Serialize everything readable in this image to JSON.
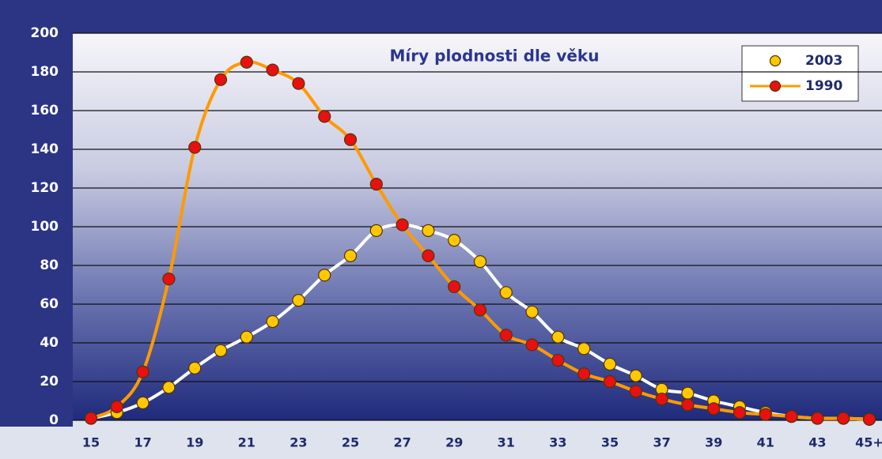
{
  "chart_data": {
    "type": "line",
    "title": "Míry plodnosti dle věku",
    "categories": [
      "15",
      null,
      "17",
      null,
      "19",
      null,
      "21",
      null,
      "23",
      null,
      "25",
      null,
      "27",
      null,
      "29",
      null,
      "31",
      null,
      "33",
      null,
      "35",
      null,
      "37",
      null,
      "39",
      null,
      "41",
      null,
      "43",
      null,
      "45+"
    ],
    "series": [
      {
        "name": "2003",
        "color": "#ffc800",
        "line_color": "#ffffff",
        "values": [
          1,
          4,
          9,
          17,
          27,
          36,
          43,
          51,
          62,
          75,
          85,
          98,
          101,
          98,
          93,
          82,
          66,
          56,
          43,
          37,
          29,
          23,
          16,
          14,
          10,
          7,
          4,
          2,
          1,
          1,
          0.5
        ]
      },
      {
        "name": "1990",
        "color": "#e81010",
        "line_color": "#ff9a00",
        "values": [
          1,
          7,
          25,
          73,
          141,
          176,
          185,
          181,
          174,
          157,
          145,
          122,
          101,
          85,
          69,
          57,
          44,
          39,
          31,
          24,
          20,
          15,
          11,
          8,
          6,
          4,
          3,
          2,
          1,
          1,
          0.5
        ]
      }
    ],
    "ylim": [
      0,
      200
    ],
    "yticks": [
      0,
      20,
      40,
      60,
      80,
      100,
      120,
      140,
      160,
      180,
      200
    ],
    "grid": true,
    "legend": "top-right"
  }
}
